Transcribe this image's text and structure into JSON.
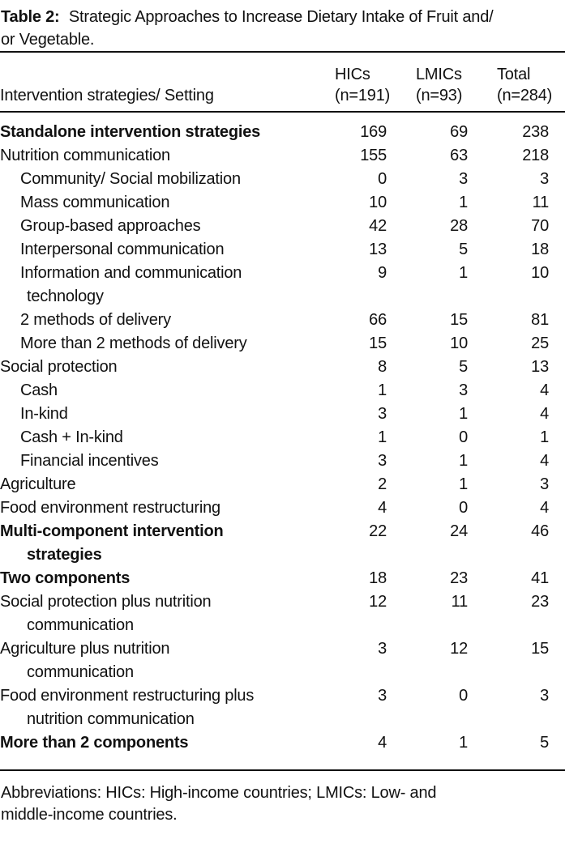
{
  "caption": {
    "label": "Table 2:",
    "text": [
      "Strategic Approaches to Increase Dietary Intake of Fruit and/",
      "or Vegetable."
    ]
  },
  "columns": {
    "stub": "Intervention strategies/ Setting",
    "groups": [
      {
        "name": "HICs",
        "n": "(n=191)"
      },
      {
        "name": "LMICs",
        "n": "(n=93)"
      },
      {
        "name": "Total",
        "n": "(n=284)"
      }
    ]
  },
  "rows": [
    {
      "label": [
        "Standalone intervention strategies"
      ],
      "bold": true,
      "indent": 0,
      "values": [
        "169",
        "69",
        "238"
      ]
    },
    {
      "label": [
        "Nutrition communication"
      ],
      "bold": false,
      "indent": 0,
      "values": [
        "155",
        "63",
        "218"
      ]
    },
    {
      "label": [
        "Community/ Social mobilization"
      ],
      "bold": false,
      "indent": 1,
      "values": [
        "0",
        "3",
        "3"
      ]
    },
    {
      "label": [
        "Mass communication"
      ],
      "bold": false,
      "indent": 1,
      "values": [
        "10",
        "1",
        "11"
      ]
    },
    {
      "label": [
        "Group-based approaches"
      ],
      "bold": false,
      "indent": 1,
      "values": [
        "42",
        "28",
        "70"
      ]
    },
    {
      "label": [
        "Interpersonal communication"
      ],
      "bold": false,
      "indent": 1,
      "values": [
        "13",
        "5",
        "18"
      ]
    },
    {
      "label": [
        "Information and communication",
        "technology"
      ],
      "bold": false,
      "indent": 1,
      "values": [
        "9",
        "1",
        "10"
      ]
    },
    {
      "label": [
        "2 methods of delivery"
      ],
      "bold": false,
      "indent": 1,
      "values": [
        "66",
        "15",
        "81"
      ]
    },
    {
      "label": [
        "More than 2 methods of delivery"
      ],
      "bold": false,
      "indent": 1,
      "values": [
        "15",
        "10",
        "25"
      ]
    },
    {
      "label": [
        "Social protection"
      ],
      "bold": false,
      "indent": 0,
      "values": [
        "8",
        "5",
        "13"
      ]
    },
    {
      "label": [
        "Cash"
      ],
      "bold": false,
      "indent": 1,
      "values": [
        "1",
        "3",
        "4"
      ]
    },
    {
      "label": [
        "In-kind"
      ],
      "bold": false,
      "indent": 1,
      "values": [
        "3",
        "1",
        "4"
      ]
    },
    {
      "label": [
        "Cash + In-kind"
      ],
      "bold": false,
      "indent": 1,
      "values": [
        "1",
        "0",
        "1"
      ]
    },
    {
      "label": [
        "Financial incentives"
      ],
      "bold": false,
      "indent": 1,
      "values": [
        "3",
        "1",
        "4"
      ]
    },
    {
      "label": [
        "Agriculture"
      ],
      "bold": false,
      "indent": 0,
      "values": [
        "2",
        "1",
        "3"
      ]
    },
    {
      "label": [
        "Food environment restructuring"
      ],
      "bold": false,
      "indent": 0,
      "values": [
        "4",
        "0",
        "4"
      ]
    },
    {
      "label": [
        "Multi-component intervention",
        "strategies"
      ],
      "bold": true,
      "indent": 0,
      "values": [
        "22",
        "24",
        "46"
      ]
    },
    {
      "label": [
        "Two components"
      ],
      "bold": true,
      "indent": 0,
      "values": [
        "18",
        "23",
        "41"
      ]
    },
    {
      "label": [
        "Social protection plus nutrition",
        "communication"
      ],
      "bold": false,
      "indent": 0,
      "values": [
        "12",
        "11",
        "23"
      ]
    },
    {
      "label": [
        "Agriculture plus nutrition",
        "communication"
      ],
      "bold": false,
      "indent": 0,
      "values": [
        "3",
        "12",
        "15"
      ]
    },
    {
      "label": [
        "Food environment restructuring plus",
        "nutrition communication"
      ],
      "bold": false,
      "indent": 0,
      "values": [
        "3",
        "0",
        "3"
      ]
    },
    {
      "label": [
        "More than 2 components"
      ],
      "bold": true,
      "indent": 0,
      "values": [
        "4",
        "1",
        "5"
      ]
    }
  ],
  "footnote": [
    "Abbreviations: HICs: High-income countries; LMICs: Low- and",
    "middle-income countries."
  ]
}
